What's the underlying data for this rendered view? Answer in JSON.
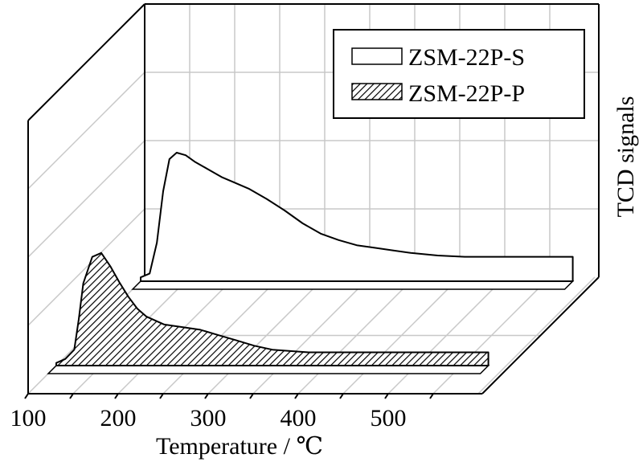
{
  "chart_data": {
    "type": "area",
    "title": "",
    "xlabel": "Temperature / ℃",
    "ylabel": "TCD signals",
    "xlim": [
      100,
      600
    ],
    "x_ticks": [
      "100",
      "200",
      "300",
      "400",
      "500"
    ],
    "projection": "3d-waterfall",
    "grid": true,
    "legend_position": "top-right",
    "series": [
      {
        "name": "ZSM-22P-S",
        "fill": "plain",
        "color": "#000000",
        "x": [
          100,
          110,
          118,
          125,
          132,
          140,
          150,
          160,
          170,
          180,
          190,
          200,
          220,
          240,
          260,
          280,
          300,
          320,
          340,
          360,
          380,
          400,
          430,
          460,
          500,
          540,
          580
        ],
        "y": [
          0.03,
          0.06,
          0.3,
          0.7,
          0.95,
          1.0,
          0.98,
          0.93,
          0.89,
          0.85,
          0.81,
          0.78,
          0.72,
          0.64,
          0.55,
          0.45,
          0.37,
          0.32,
          0.28,
          0.26,
          0.24,
          0.22,
          0.2,
          0.19,
          0.19,
          0.19,
          0.19
        ]
      },
      {
        "name": "ZSM-22P-P",
        "fill": "hatched",
        "color": "#000000",
        "x": [
          100,
          110,
          120,
          125,
          130,
          140,
          150,
          160,
          170,
          180,
          190,
          200,
          220,
          240,
          260,
          280,
          300,
          320,
          340,
          360,
          380,
          400,
          430,
          460,
          500,
          540,
          580
        ],
        "y": [
          0.02,
          0.05,
          0.12,
          0.35,
          0.62,
          0.82,
          0.85,
          0.75,
          0.63,
          0.52,
          0.43,
          0.37,
          0.31,
          0.29,
          0.27,
          0.23,
          0.19,
          0.15,
          0.12,
          0.11,
          0.1,
          0.1,
          0.1,
          0.1,
          0.1,
          0.1,
          0.1
        ]
      }
    ]
  }
}
